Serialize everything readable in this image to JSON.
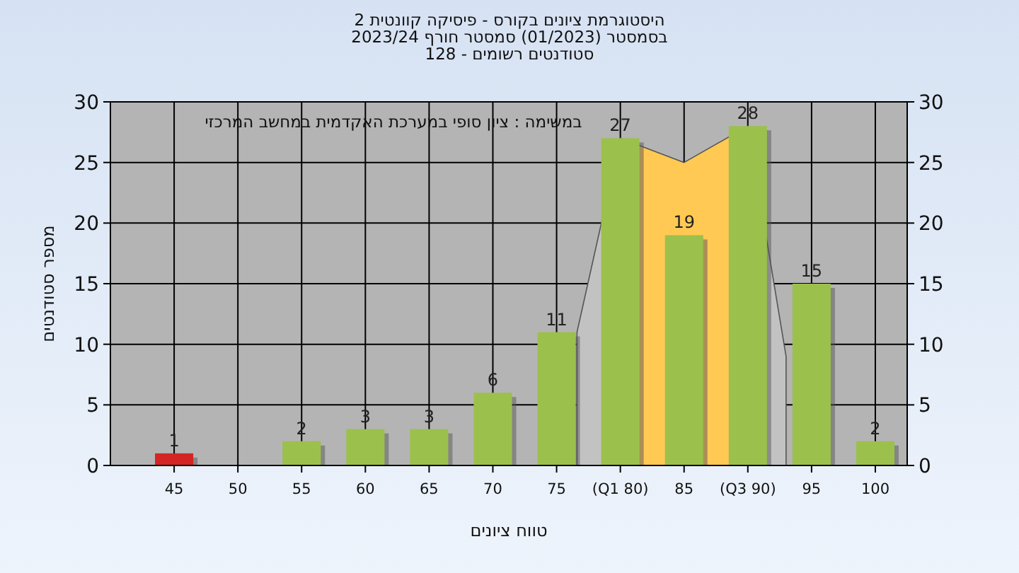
{
  "chart_data": {
    "type": "bar",
    "title": "היסטוגרמת ציונים בקורס - פיסיקה קוונטית 2",
    "subtitle": "בסמסטר (01/2023) סמסטר חורף 2023/24\nסטודנטים רשומים - 128",
    "xlabel": "טווח ציונים",
    "ylabel": "מספר סטודנטים",
    "annotations": [
      "במשימה : ציון סופי במערכת האקדמית במחשב המרכזי"
    ],
    "x": [
      45,
      55,
      60,
      65,
      70,
      75,
      80,
      85,
      90,
      95,
      100
    ],
    "values": [
      1,
      2,
      3,
      3,
      6,
      11,
      27,
      19,
      28,
      15,
      2
    ],
    "colors": [
      "#d42424",
      "#9cc04c",
      "#9cc04c",
      "#9cc04c",
      "#9cc04c",
      "#9cc04c",
      "#9cc04c",
      "#9cc04c",
      "#9cc04c",
      "#9cc04c",
      "#9cc04c"
    ],
    "series": [
      {
        "type": "area",
        "color": "#c2c2c2",
        "x": [
          76.6,
          80
        ],
        "values": [
          11,
          27
        ]
      },
      {
        "type": "area",
        "color": "#c2c2c2",
        "x": [
          90,
          93
        ],
        "values": [
          28,
          9
        ]
      },
      {
        "type": "area",
        "color": "#ffc954",
        "x": [
          80,
          85,
          90
        ],
        "values": [
          27,
          25,
          28
        ]
      }
    ],
    "value_labels": [
      "1",
      "2",
      "3",
      "3",
      "6",
      "11",
      "27",
      "19",
      "28",
      "15",
      "2"
    ],
    "xlim": [
      40,
      102.5
    ],
    "xticks": [
      45,
      50,
      55,
      60,
      65,
      70,
      75,
      {
        "value": 80,
        "label": "(Q1 80)"
      },
      85,
      {
        "value": 90,
        "label": "(Q3 90)"
      },
      95,
      100
    ],
    "ylim": [
      0,
      30
    ],
    "yticks": [
      0,
      5,
      10,
      15,
      20,
      25,
      30
    ],
    "y2lim": [
      0,
      30
    ],
    "y2ticks": [
      0,
      5,
      10,
      15,
      20,
      25,
      30
    ],
    "grid": true
  }
}
